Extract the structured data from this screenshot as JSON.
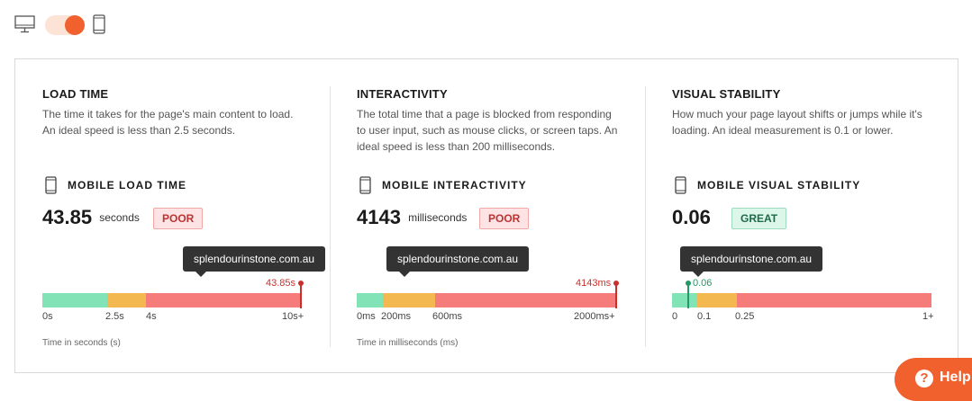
{
  "view_toggle": {
    "mode": "mobile",
    "desktop_icon": "desktop-icon",
    "mobile_icon": "mobile-icon"
  },
  "panels": [
    {
      "title": "LOAD TIME",
      "description": "The time it takes for the page's main content to load. An ideal speed is less than 2.5 seconds.",
      "metric_label": "MOBILE LOAD TIME",
      "value": "43.85",
      "unit": "seconds",
      "rating": "POOR",
      "tooltip": "splendourinstone.com.au",
      "marker_label": "43.85s",
      "scale_labels": [
        "0s",
        "2.5s",
        "4s",
        "10s+"
      ],
      "axis_caption": "Time in seconds (s)"
    },
    {
      "title": "INTERACTIVITY",
      "description": "The total time that a page is blocked from responding to user input, such as mouse clicks, or screen taps. An ideal speed is less than 200 milliseconds.",
      "metric_label": "MOBILE INTERACTIVITY",
      "value": "4143",
      "unit": "milliseconds",
      "rating": "POOR",
      "tooltip": "splendourinstone.com.au",
      "marker_label": "4143ms",
      "scale_labels": [
        "0ms",
        "200ms",
        "600ms",
        "2000ms+"
      ],
      "axis_caption": "Time in milliseconds (ms)"
    },
    {
      "title": "VISUAL STABILITY",
      "description": "How much your page layout shifts or jumps while it's loading. An ideal measurement is 0.1 or lower.",
      "metric_label": "MOBILE VISUAL STABILITY",
      "value": "0.06",
      "unit": "",
      "rating": "GREAT",
      "tooltip": "splendourinstone.com.au",
      "marker_label": "0.06",
      "scale_labels": [
        "0",
        "0.1",
        "0.25",
        "1+"
      ],
      "axis_caption": ""
    }
  ],
  "help_button": {
    "label": "Help",
    "icon": "question-icon"
  },
  "colors": {
    "good": "#82e3b6",
    "needs_improvement": "#f3b84f",
    "poor": "#f67c7c",
    "accent": "#f0612e"
  }
}
